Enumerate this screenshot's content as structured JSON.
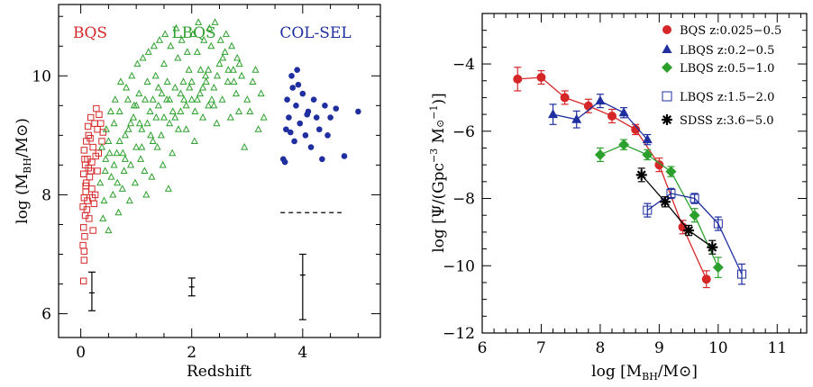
{
  "chart_data": [
    {
      "type": "scatter",
      "xlabel": "Redshift",
      "ylabel_main": "log (M",
      "ylabel_sub": "BH",
      "ylabel_tail": "/M",
      "xlim": [
        -0.4,
        5.4
      ],
      "ylim": [
        5.6,
        11.2
      ],
      "xticks": [
        "0",
        "2",
        "4"
      ],
      "yticks": [
        "6",
        "8",
        "10"
      ],
      "legend_labels": [
        {
          "text": "BQS",
          "color": "#d62728"
        },
        {
          "text": "LBQS",
          "color": "#2ca02c"
        },
        {
          "text": "COL-SEL",
          "color": "#1f2f9f"
        }
      ],
      "series": [
        {
          "name": "BQS",
          "marker": "open-square",
          "color": "#d62728",
          "points": [
            [
              0.05,
              6.55
            ],
            [
              0.06,
              7.05
            ],
            [
              0.07,
              7.3
            ],
            [
              0.05,
              7.45
            ],
            [
              0.08,
              7.65
            ],
            [
              0.04,
              7.8
            ],
            [
              0.06,
              7.95
            ],
            [
              0.09,
              8.05
            ],
            [
              0.1,
              8.2
            ],
            [
              0.05,
              8.35
            ],
            [
              0.08,
              8.5
            ],
            [
              0.12,
              8.6
            ],
            [
              0.06,
              8.75
            ],
            [
              0.1,
              8.9
            ],
            [
              0.14,
              9.0
            ],
            [
              0.18,
              8.4
            ],
            [
              0.2,
              8.1
            ],
            [
              0.22,
              8.8
            ],
            [
              0.25,
              9.2
            ],
            [
              0.15,
              7.6
            ],
            [
              0.12,
              7.9
            ],
            [
              0.18,
              9.3
            ],
            [
              0.28,
              9.45
            ],
            [
              0.3,
              9.1
            ],
            [
              0.32,
              8.7
            ],
            [
              0.22,
              7.4
            ],
            [
              0.07,
              8.6
            ],
            [
              0.16,
              8.3
            ],
            [
              0.26,
              8.0
            ],
            [
              0.36,
              9.2
            ],
            [
              0.04,
              7.15
            ],
            [
              0.11,
              7.75
            ],
            [
              0.2,
              8.55
            ],
            [
              0.3,
              8.4
            ],
            [
              0.38,
              8.9
            ],
            [
              0.13,
              9.15
            ],
            [
              0.09,
              8.15
            ],
            [
              0.24,
              7.85
            ],
            [
              0.17,
              8.95
            ],
            [
              0.33,
              9.35
            ],
            [
              0.06,
              6.9
            ],
            [
              0.14,
              8.45
            ],
            [
              0.21,
              7.95
            ],
            [
              0.27,
              8.65
            ],
            [
              0.4,
              9.05
            ]
          ]
        },
        {
          "name": "LBQS",
          "marker": "open-triangle",
          "color": "#2ca02c",
          "points": [
            [
              0.35,
              8.2
            ],
            [
              0.4,
              7.6
            ],
            [
              0.45,
              8.6
            ],
            [
              0.5,
              8.9
            ],
            [
              0.55,
              8.3
            ],
            [
              0.6,
              9.2
            ],
            [
              0.65,
              8.7
            ],
            [
              0.7,
              9.4
            ],
            [
              0.75,
              8.1
            ],
            [
              0.8,
              9.0
            ],
            [
              0.85,
              9.6
            ],
            [
              0.9,
              8.5
            ],
            [
              0.95,
              9.3
            ],
            [
              1.0,
              8.8
            ],
            [
              1.05,
              9.7
            ],
            [
              1.1,
              9.1
            ],
            [
              1.15,
              8.4
            ],
            [
              1.2,
              9.9
            ],
            [
              1.25,
              9.4
            ],
            [
              1.3,
              8.9
            ],
            [
              1.35,
              10.0
            ],
            [
              1.4,
              9.5
            ],
            [
              1.45,
              9.0
            ],
            [
              1.5,
              10.2
            ],
            [
              1.55,
              9.6
            ],
            [
              1.6,
              9.2
            ],
            [
              1.65,
              8.7
            ],
            [
              1.7,
              9.8
            ],
            [
              1.75,
              10.3
            ],
            [
              1.8,
              9.4
            ],
            [
              1.85,
              9.9
            ],
            [
              1.9,
              9.1
            ],
            [
              1.95,
              10.1
            ],
            [
              2.0,
              9.6
            ],
            [
              2.05,
              8.9
            ],
            [
              2.1,
              10.4
            ],
            [
              2.15,
              9.7
            ],
            [
              2.2,
              9.3
            ],
            [
              2.25,
              10.0
            ],
            [
              2.3,
              9.5
            ],
            [
              2.35,
              10.5
            ],
            [
              2.4,
              9.8
            ],
            [
              2.45,
              9.2
            ],
            [
              2.5,
              10.2
            ],
            [
              2.55,
              9.6
            ],
            [
              2.6,
              10.4
            ],
            [
              2.65,
              9.9
            ],
            [
              2.7,
              9.3
            ],
            [
              2.75,
              10.1
            ],
            [
              2.8,
              9.7
            ],
            [
              2.85,
              9.4
            ],
            [
              2.9,
              10.0
            ],
            [
              3.0,
              9.6
            ],
            [
              3.1,
              9.9
            ],
            [
              3.2,
              9.1
            ],
            [
              3.3,
              9.3
            ],
            [
              2.95,
              8.8
            ],
            [
              0.5,
              7.4
            ],
            [
              0.42,
              7.9
            ],
            [
              0.58,
              8.0
            ],
            [
              0.68,
              7.7
            ],
            [
              0.78,
              8.4
            ],
            [
              0.88,
              7.9
            ],
            [
              0.98,
              8.2
            ],
            [
              1.08,
              8.6
            ],
            [
              1.18,
              8.0
            ],
            [
              1.28,
              8.3
            ],
            [
              1.38,
              8.8
            ],
            [
              1.48,
              8.5
            ],
            [
              1.58,
              8.1
            ],
            [
              0.62,
              9.6
            ],
            [
              0.72,
              9.9
            ],
            [
              0.82,
              9.8
            ],
            [
              0.92,
              10.0
            ],
            [
              1.02,
              10.2
            ],
            [
              1.12,
              10.3
            ],
            [
              1.22,
              10.4
            ],
            [
              1.32,
              10.5
            ],
            [
              1.42,
              10.6
            ],
            [
              1.52,
              10.7
            ],
            [
              1.62,
              10.5
            ],
            [
              1.72,
              10.8
            ],
            [
              1.82,
              10.6
            ],
            [
              1.92,
              10.4
            ],
            [
              2.02,
              10.7
            ],
            [
              2.12,
              10.9
            ],
            [
              2.22,
              10.6
            ],
            [
              2.32,
              10.8
            ],
            [
              2.42,
              10.9
            ],
            [
              2.52,
              10.6
            ],
            [
              2.62,
              10.7
            ],
            [
              2.72,
              10.5
            ],
            [
              2.82,
              10.3
            ],
            [
              0.38,
              8.8
            ],
            [
              0.46,
              9.1
            ],
            [
              0.54,
              9.4
            ],
            [
              0.66,
              8.2
            ],
            [
              0.76,
              8.7
            ],
            [
              0.86,
              9.1
            ],
            [
              0.96,
              9.5
            ],
            [
              1.06,
              9.2
            ],
            [
              1.16,
              9.6
            ],
            [
              1.26,
              9.0
            ],
            [
              1.36,
              9.3
            ],
            [
              1.46,
              9.7
            ],
            [
              1.56,
              9.9
            ],
            [
              1.66,
              9.4
            ],
            [
              1.76,
              9.1
            ],
            [
              1.86,
              9.6
            ],
            [
              1.96,
              9.8
            ],
            [
              2.06,
              9.4
            ],
            [
              2.16,
              10.1
            ],
            [
              2.26,
              9.9
            ],
            [
              2.36,
              9.6
            ],
            [
              2.46,
              10.0
            ],
            [
              2.56,
              10.3
            ],
            [
              2.66,
              10.1
            ],
            [
              2.76,
              9.9
            ],
            [
              2.86,
              10.2
            ],
            [
              0.44,
              8.4
            ],
            [
              0.52,
              8.7
            ],
            [
              0.6,
              8.5
            ],
            [
              0.7,
              8.9
            ],
            [
              0.8,
              8.6
            ],
            [
              0.9,
              9.2
            ],
            [
              1.0,
              9.5
            ],
            [
              1.1,
              8.8
            ],
            [
              1.2,
              9.2
            ],
            [
              1.3,
              9.6
            ],
            [
              1.4,
              9.8
            ],
            [
              1.5,
              9.3
            ],
            [
              1.6,
              9.6
            ],
            [
              1.7,
              9.3
            ],
            [
              1.8,
              9.7
            ],
            [
              1.9,
              9.5
            ],
            [
              2.0,
              9.9
            ],
            [
              2.1,
              9.6
            ],
            [
              2.2,
              9.8
            ],
            [
              2.3,
              10.1
            ],
            [
              2.4,
              9.5
            ],
            [
              3.05,
              9.4
            ],
            [
              3.15,
              10.1
            ],
            [
              3.25,
              9.7
            ]
          ]
        },
        {
          "name": "COL-SEL",
          "marker": "filled-circle",
          "color": "#1f2f9f",
          "points": [
            [
              3.65,
              8.6
            ],
            [
              3.7,
              9.1
            ],
            [
              3.72,
              9.6
            ],
            [
              3.75,
              9.3
            ],
            [
              3.8,
              10.0
            ],
            [
              3.82,
              9.8
            ],
            [
              3.85,
              8.9
            ],
            [
              3.88,
              9.5
            ],
            [
              3.9,
              10.1
            ],
            [
              3.95,
              9.2
            ],
            [
              4.0,
              9.7
            ],
            [
              4.05,
              9.0
            ],
            [
              4.1,
              9.4
            ],
            [
              4.15,
              8.8
            ],
            [
              4.2,
              9.6
            ],
            [
              4.25,
              9.3
            ],
            [
              4.3,
              9.1
            ],
            [
              4.35,
              8.6
            ],
            [
              4.4,
              9.5
            ],
            [
              4.45,
              9.0
            ],
            [
              4.5,
              9.3
            ],
            [
              3.68,
              8.55
            ],
            [
              3.78,
              9.05
            ],
            [
              3.92,
              9.85
            ],
            [
              4.08,
              9.35
            ],
            [
              4.6,
              9.45
            ],
            [
              4.75,
              8.65
            ],
            [
              5.0,
              9.4
            ]
          ]
        }
      ],
      "dashed_line": {
        "x0": 3.6,
        "x1": 4.7,
        "y": 7.7
      },
      "error_bars": [
        {
          "x": 0.2,
          "y": 6.35,
          "lo": 6.05,
          "hi": 6.7
        },
        {
          "x": 2.0,
          "y": 6.45,
          "lo": 6.3,
          "hi": 6.6
        },
        {
          "x": 4.0,
          "y": 6.65,
          "lo": 5.9,
          "hi": 7.0
        }
      ]
    },
    {
      "type": "line",
      "xlabel_main": "log [M",
      "xlabel_sub": "BH",
      "xlabel_tail": "/M",
      "ylabel_main": "log [Ψ/(Gpc",
      "ylabel_sup1": "−3",
      "ylabel_mid": " M",
      "ylabel_sup2": "−1",
      "ylabel_tail": ")]",
      "xlim": [
        6.0,
        11.5
      ],
      "ylim": [
        -12.0,
        -2.5
      ],
      "xticks": [
        "6",
        "7",
        "8",
        "9",
        "10",
        "11"
      ],
      "yticks": [
        "−4",
        "−6",
        "−8",
        "−10",
        "−12"
      ],
      "series": [
        {
          "name": "BQS z:0.025−0.5",
          "marker": "filled-circle",
          "color": "#d62728",
          "x": [
            6.6,
            7.0,
            7.4,
            7.8,
            8.2,
            8.6,
            9.0,
            9.4,
            9.8
          ],
          "y": [
            -4.45,
            -4.4,
            -5.0,
            -5.25,
            -5.55,
            -5.95,
            -7.0,
            -8.85,
            -10.4
          ],
          "err": [
            0.35,
            0.2,
            0.2,
            0.2,
            0.2,
            0.15,
            0.2,
            0.2,
            0.25
          ]
        },
        {
          "name": "LBQS z:0.2−0.5",
          "marker": "filled-triangle",
          "color": "#1f2f9f",
          "x": [
            7.2,
            7.6,
            8.0,
            8.4,
            8.8
          ],
          "y": [
            -5.5,
            -5.65,
            -5.1,
            -5.45,
            -6.25
          ],
          "err": [
            0.3,
            0.25,
            0.2,
            0.15,
            0.15
          ]
        },
        {
          "name": "LBQS z:0.5−1.0",
          "marker": "filled-diamond",
          "color": "#2ca02c",
          "x": [
            8.0,
            8.4,
            8.8,
            9.2,
            9.6,
            10.0
          ],
          "y": [
            -6.7,
            -6.4,
            -6.7,
            -7.2,
            -8.5,
            -10.05
          ],
          "err": [
            0.2,
            0.15,
            0.15,
            0.15,
            0.2,
            0.3
          ]
        },
        {
          "name": "LBQS z:1.5−2.0",
          "marker": "open-square",
          "color": "#1f2f9f",
          "x": [
            8.8,
            9.2,
            9.6,
            10.0,
            10.4
          ],
          "y": [
            -8.35,
            -7.85,
            -8.0,
            -8.75,
            -10.25
          ],
          "err": [
            0.2,
            0.15,
            0.15,
            0.2,
            0.3
          ]
        },
        {
          "name": "SDSS z:3.6−5.0",
          "marker": "filled-star",
          "color": "#000000",
          "x": [
            8.7,
            9.1,
            9.5,
            9.9
          ],
          "y": [
            -7.3,
            -8.1,
            -8.95,
            -9.45
          ],
          "err": [
            0.2,
            0.15,
            0.15,
            0.2
          ]
        }
      ]
    }
  ]
}
